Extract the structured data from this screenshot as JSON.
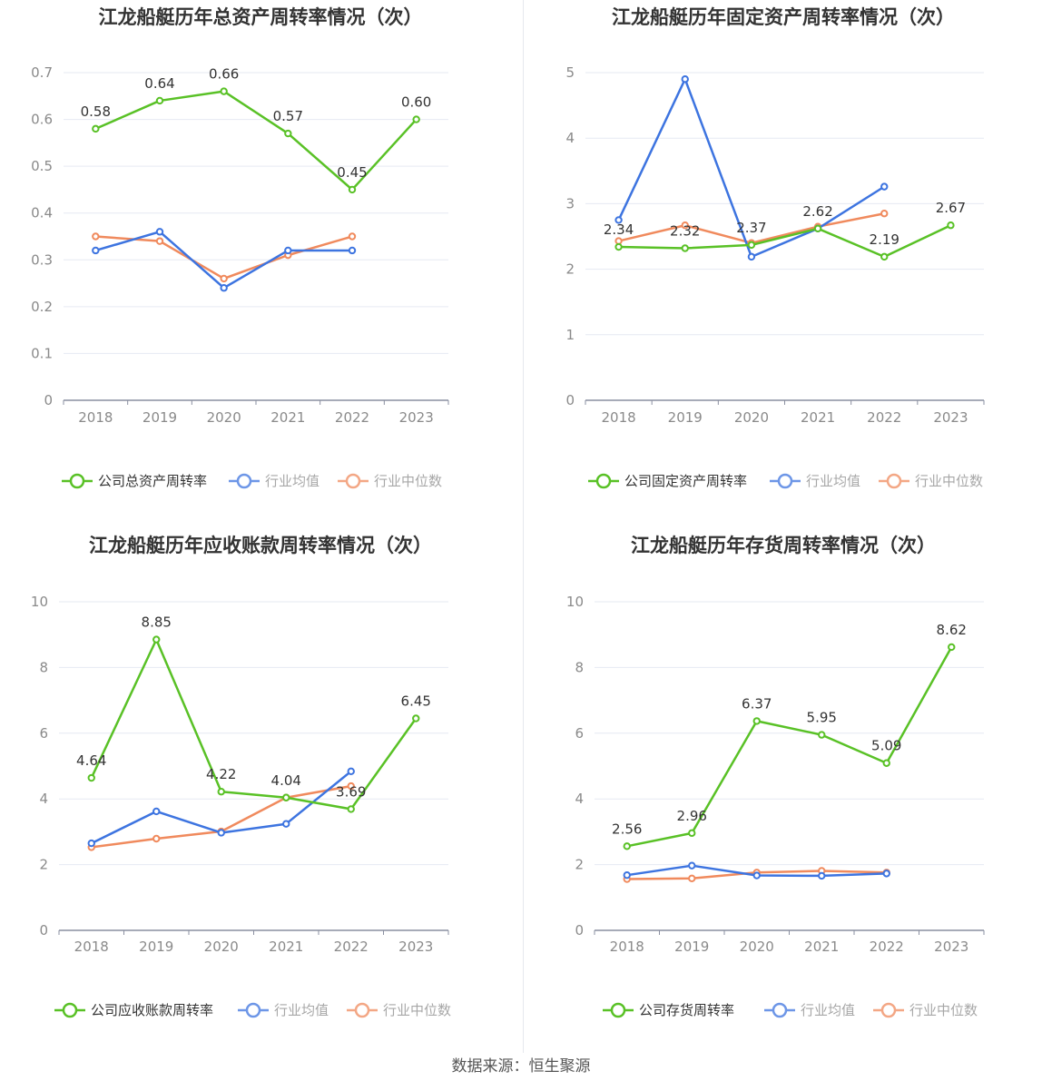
{
  "source_text": "数据来源：恒生聚源",
  "colors": {
    "company": "#59c126",
    "avg": "#3d74e0",
    "median": "#f08a5d",
    "grid": "#e6e9f2",
    "axis": "#8a8fa0",
    "tick_text": "#8a8a8a",
    "label_text": "#333333",
    "title_text": "#333333"
  },
  "chart_data": [
    {
      "type": "line",
      "title": "江龙船艇历年总资产周转率情况（次）",
      "categories": [
        "2018",
        "2019",
        "2020",
        "2021",
        "2022",
        "2023"
      ],
      "ylim": [
        0,
        0.7
      ],
      "yticks": [
        "0",
        "0.1",
        "0.2",
        "0.3",
        "0.4",
        "0.5",
        "0.6",
        "0.7"
      ],
      "series": [
        {
          "name": "公司总资产周转率",
          "role": "company",
          "values": [
            0.58,
            0.64,
            0.66,
            0.57,
            0.45,
            0.6
          ],
          "labels": [
            "0.58",
            "0.64",
            "0.66",
            "0.57",
            "0.45",
            "0.60"
          ]
        },
        {
          "name": "行业均值",
          "role": "avg",
          "values": [
            0.32,
            0.36,
            0.24,
            0.32,
            0.32,
            null
          ]
        },
        {
          "name": "行业中位数",
          "role": "median",
          "values": [
            0.35,
            0.34,
            0.26,
            0.31,
            0.35,
            null
          ]
        }
      ]
    },
    {
      "type": "line",
      "title": "江龙船艇历年固定资产周转率情况（次）",
      "categories": [
        "2018",
        "2019",
        "2020",
        "2021",
        "2022",
        "2023"
      ],
      "ylim": [
        0,
        5
      ],
      "yticks": [
        "0",
        "1",
        "2",
        "3",
        "4",
        "5"
      ],
      "series": [
        {
          "name": "公司固定资产周转率",
          "role": "company",
          "values": [
            2.34,
            2.32,
            2.37,
            2.62,
            2.19,
            2.67
          ],
          "labels": [
            "2.34",
            "2.32",
            "2.37",
            "2.62",
            "2.19",
            "2.67"
          ]
        },
        {
          "name": "行业均值",
          "role": "avg",
          "values": [
            2.75,
            4.9,
            2.19,
            2.62,
            3.26,
            null
          ]
        },
        {
          "name": "行业中位数",
          "role": "median",
          "values": [
            2.43,
            2.67,
            2.4,
            2.65,
            2.85,
            null
          ]
        }
      ]
    },
    {
      "type": "line",
      "title": "江龙船艇历年应收账款周转率情况（次）",
      "categories": [
        "2018",
        "2019",
        "2020",
        "2021",
        "2022",
        "2023"
      ],
      "ylim": [
        0,
        10
      ],
      "yticks": [
        "0",
        "2",
        "4",
        "6",
        "8",
        "10"
      ],
      "series": [
        {
          "name": "公司应收账款周转率",
          "role": "company",
          "values": [
            4.64,
            8.85,
            4.22,
            4.04,
            3.69,
            6.45
          ],
          "labels": [
            "4.64",
            "8.85",
            "4.22",
            "4.04",
            "3.69",
            "6.45"
          ]
        },
        {
          "name": "行业均值",
          "role": "avg",
          "values": [
            2.65,
            3.62,
            2.97,
            3.24,
            4.84,
            null
          ]
        },
        {
          "name": "行业中位数",
          "role": "median",
          "values": [
            2.53,
            2.79,
            3.01,
            4.04,
            4.39,
            null
          ]
        }
      ]
    },
    {
      "type": "line",
      "title": "江龙船艇历年存货周转率情况（次）",
      "categories": [
        "2018",
        "2019",
        "2020",
        "2021",
        "2022",
        "2023"
      ],
      "ylim": [
        0,
        10
      ],
      "yticks": [
        "0",
        "2",
        "4",
        "6",
        "8",
        "10"
      ],
      "series": [
        {
          "name": "公司存货周转率",
          "role": "company",
          "values": [
            2.56,
            2.96,
            6.37,
            5.95,
            5.09,
            8.62
          ],
          "labels": [
            "2.56",
            "2.96",
            "6.37",
            "5.95",
            "5.09",
            "8.62"
          ]
        },
        {
          "name": "行业均值",
          "role": "avg",
          "values": [
            1.68,
            1.97,
            1.67,
            1.66,
            1.73,
            null
          ]
        },
        {
          "name": "行业中位数",
          "role": "median",
          "values": [
            1.56,
            1.58,
            1.76,
            1.81,
            1.76,
            null
          ]
        }
      ]
    }
  ]
}
